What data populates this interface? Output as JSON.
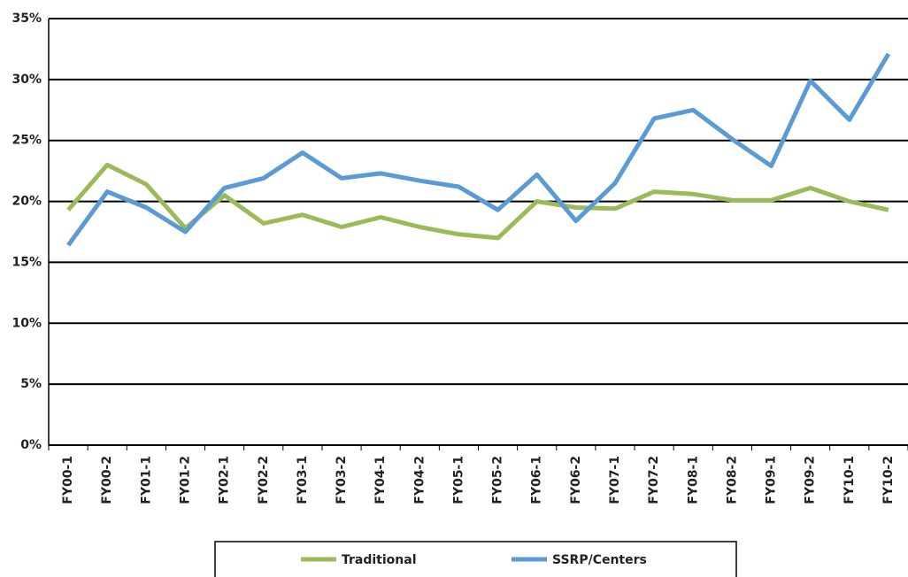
{
  "chart_data": {
    "type": "line",
    "categories": [
      "FY00-1",
      "FY00-2",
      "FY01-1",
      "FY01-2",
      "FY02-1",
      "FY02-2",
      "FY03-1",
      "FY03-2",
      "FY04-1",
      "FY04-2",
      "FY05-1",
      "FY05-2",
      "FY06-1",
      "FY06-2",
      "FY07-1",
      "FY07-2",
      "FY08-1",
      "FY08-2",
      "FY09-1",
      "FY09-2",
      "FY10-1",
      "FY10-2"
    ],
    "series": [
      {
        "name": "Traditional",
        "color": "#9bbb59",
        "values": [
          19.3,
          23.0,
          21.4,
          17.8,
          20.5,
          18.2,
          18.9,
          17.9,
          18.7,
          17.9,
          17.3,
          17.0,
          20.0,
          19.5,
          19.4,
          20.8,
          20.6,
          20.1,
          20.1,
          21.1,
          20.0,
          19.3
        ]
      },
      {
        "name": "SSRP/Centers",
        "color": "#5b9bd5",
        "values": [
          16.4,
          20.8,
          19.5,
          17.5,
          21.1,
          21.9,
          24.0,
          21.9,
          22.3,
          21.7,
          21.2,
          19.3,
          22.2,
          18.4,
          21.5,
          26.8,
          27.5,
          25.1,
          22.9,
          29.9,
          26.7,
          32.1
        ]
      }
    ],
    "ylim": [
      0,
      35
    ],
    "yticks": [
      {
        "value": 0,
        "label": "0%"
      },
      {
        "value": 5,
        "label": "5%"
      },
      {
        "value": 10,
        "label": "10%"
      },
      {
        "value": 15,
        "label": "15%"
      },
      {
        "value": 20,
        "label": "20%"
      },
      {
        "value": 25,
        "label": "25%"
      },
      {
        "value": 30,
        "label": "30%"
      },
      {
        "value": 35,
        "label": "35%"
      }
    ],
    "grid": true,
    "legend": "bottom"
  }
}
